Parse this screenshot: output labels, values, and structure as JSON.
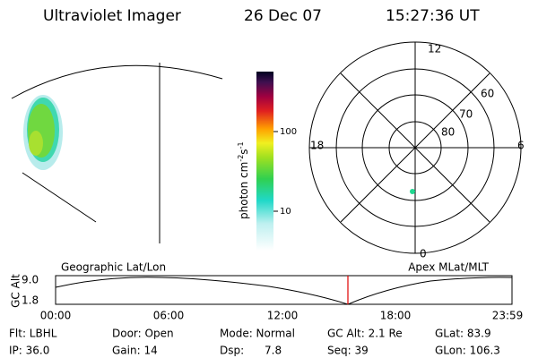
{
  "header": {
    "instrument": "Ultraviolet Imager",
    "date": "26 Dec 07",
    "time": "15:27:36 UT"
  },
  "colorbar": {
    "label": {
      "base": "photon cm",
      "exp1": "-2",
      "mid": "s",
      "exp2": "-1"
    },
    "ticks": [
      "100",
      "10"
    ]
  },
  "polar_plot": {
    "mlt_labels": {
      "top": "12",
      "left": "18",
      "right": "6",
      "bottom": "0"
    },
    "lat_labels": [
      "60",
      "70",
      "80"
    ]
  },
  "orbit_strip": {
    "left_title": "Geographic Lat/Lon",
    "right_title": "Apex MLat/MLT",
    "y_label": "GC Alt",
    "y_labels": [
      "9.0",
      "1.8"
    ],
    "time_labels": [
      "00:00",
      "06:00",
      "12:00",
      "18:00",
      "23:59"
    ]
  },
  "info": [
    [
      "Flt: LBHL",
      "IP: 36.0"
    ],
    [
      "Door: Open",
      "Gain: 14"
    ],
    [
      "Mode: Normal",
      "Dsp:      7.8"
    ],
    [
      "GC Alt: 2.1 Re",
      "Seq: 39"
    ],
    [
      "GLat: 83.9",
      "GLon: 106.3"
    ]
  ]
}
